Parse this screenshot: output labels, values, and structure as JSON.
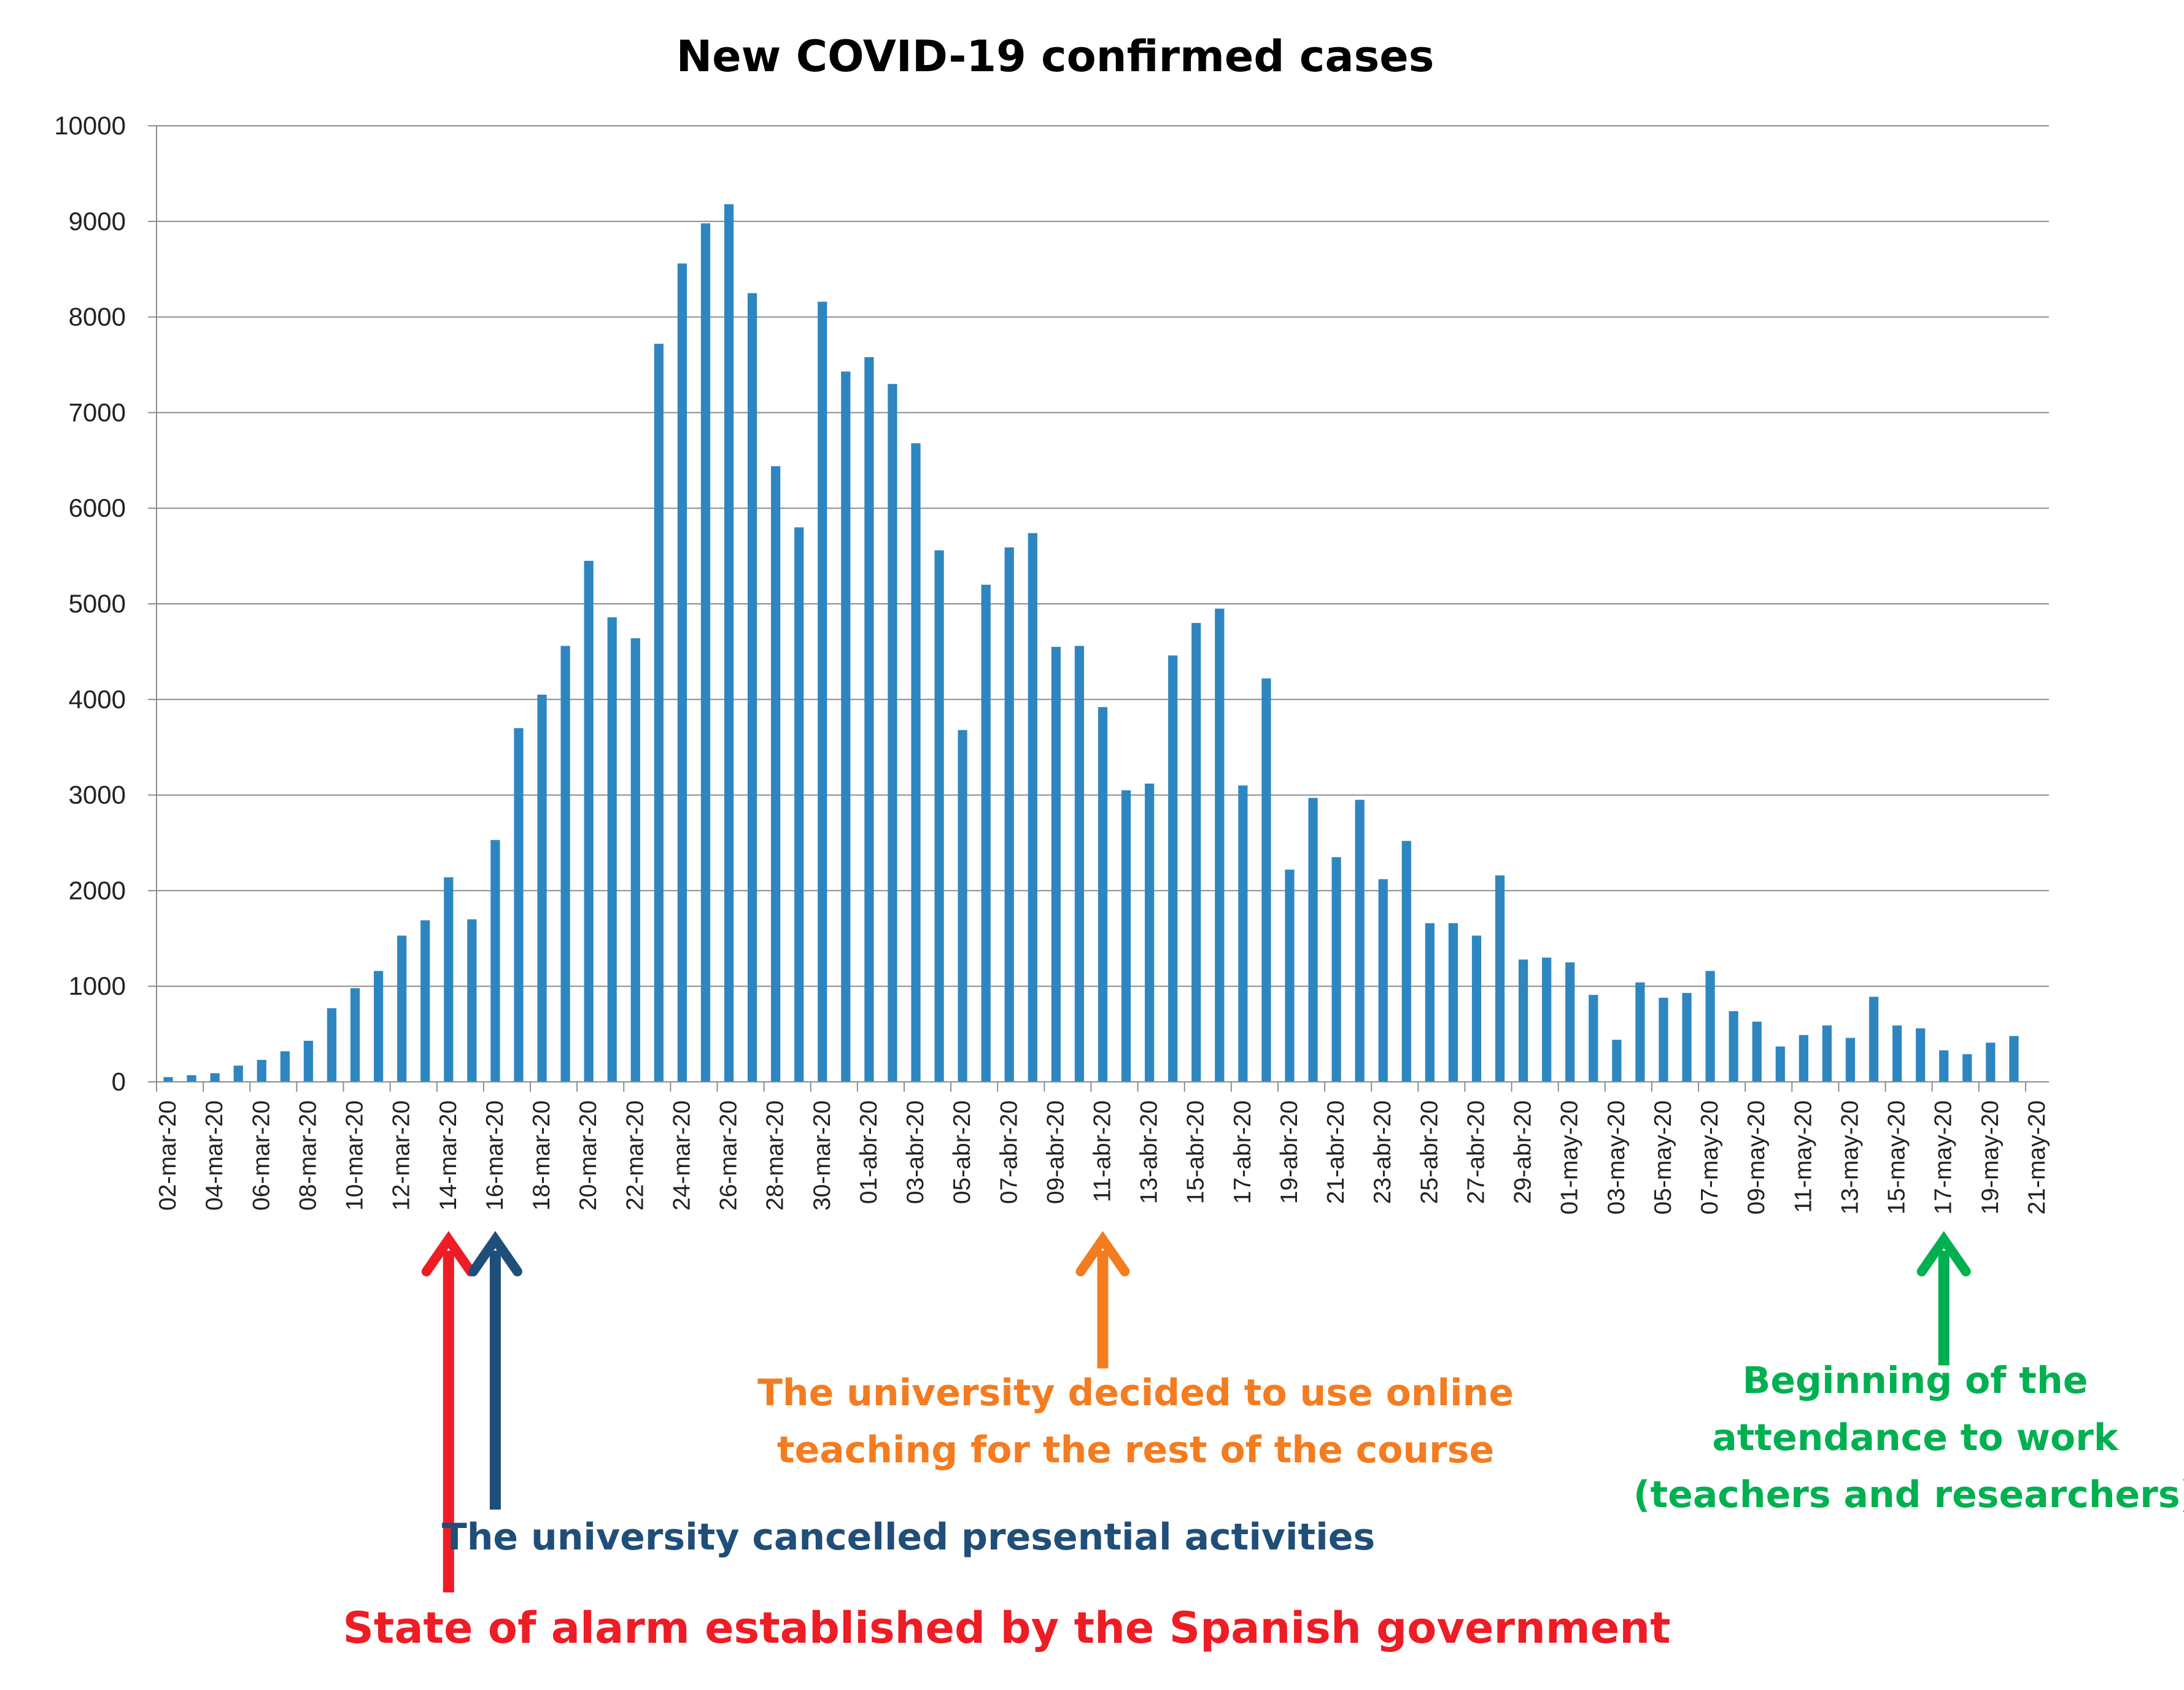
{
  "chart_data": {
    "type": "bar",
    "title": "New COVID-19 confirmed cases",
    "xlabel": "",
    "ylabel": "",
    "ylim": [
      0,
      10000
    ],
    "yticks": [
      "0",
      "1000",
      "2000",
      "3000",
      "4000",
      "5000",
      "6000",
      "7000",
      "8000",
      "9000",
      "10000"
    ],
    "grid": true,
    "bar_color": "#2e86c1",
    "categories": [
      "02-mar-20",
      "03-mar-20",
      "04-mar-20",
      "05-mar-20",
      "06-mar-20",
      "07-mar-20",
      "08-mar-20",
      "09-mar-20",
      "10-mar-20",
      "11-mar-20",
      "12-mar-20",
      "13-mar-20",
      "14-mar-20",
      "15-mar-20",
      "16-mar-20",
      "17-mar-20",
      "18-mar-20",
      "19-mar-20",
      "20-mar-20",
      "21-mar-20",
      "22-mar-20",
      "23-mar-20",
      "24-mar-20",
      "25-mar-20",
      "26-mar-20",
      "27-mar-20",
      "28-mar-20",
      "29-mar-20",
      "30-mar-20",
      "31-mar-20",
      "01-abr-20",
      "02-abr-20",
      "03-abr-20",
      "04-abr-20",
      "05-abr-20",
      "06-abr-20",
      "07-abr-20",
      "08-abr-20",
      "09-abr-20",
      "10-abr-20",
      "11-abr-20",
      "12-abr-20",
      "13-abr-20",
      "14-abr-20",
      "15-abr-20",
      "16-abr-20",
      "17-abr-20",
      "18-abr-20",
      "19-abr-20",
      "20-abr-20",
      "21-abr-20",
      "22-abr-20",
      "23-abr-20",
      "24-abr-20",
      "25-abr-20",
      "26-abr-20",
      "27-abr-20",
      "28-abr-20",
      "29-abr-20",
      "30-abr-20",
      "01-may-20",
      "02-may-20",
      "03-may-20",
      "04-may-20",
      "05-may-20",
      "06-may-20",
      "07-may-20",
      "08-may-20",
      "09-may-20",
      "10-may-20",
      "11-may-20",
      "12-may-20",
      "13-may-20",
      "14-may-20",
      "15-may-20",
      "16-may-20",
      "17-may-20",
      "18-may-20",
      "19-may-20",
      "20-may-20",
      "21-may-20"
    ],
    "xtick_labels": [
      "02-mar-20",
      "04-mar-20",
      "06-mar-20",
      "08-mar-20",
      "10-mar-20",
      "12-mar-20",
      "14-mar-20",
      "16-mar-20",
      "18-mar-20",
      "20-mar-20",
      "22-mar-20",
      "24-mar-20",
      "26-mar-20",
      "28-mar-20",
      "30-mar-20",
      "01-abr-20",
      "03-abr-20",
      "05-abr-20",
      "07-abr-20",
      "09-abr-20",
      "11-abr-20",
      "13-abr-20",
      "15-abr-20",
      "17-abr-20",
      "19-abr-20",
      "21-abr-20",
      "23-abr-20",
      "25-abr-20",
      "27-abr-20",
      "29-abr-20",
      "01-may-20",
      "03-may-20",
      "05-may-20",
      "07-may-20",
      "09-may-20",
      "11-may-20",
      "13-may-20",
      "15-may-20",
      "17-may-20",
      "19-may-20",
      "21-may-20"
    ],
    "values": [
      50,
      70,
      90,
      170,
      230,
      320,
      430,
      770,
      980,
      1160,
      1530,
      1690,
      2140,
      1700,
      2530,
      3700,
      4050,
      4560,
      5450,
      4860,
      4640,
      7720,
      8560,
      8980,
      9180,
      8250,
      6440,
      5800,
      8160,
      7430,
      7580,
      7300,
      6680,
      5560,
      3680,
      5200,
      5590,
      5740,
      4550,
      4560,
      3920,
      3050,
      3120,
      4460,
      4800,
      4950,
      3100,
      4220,
      2220,
      2970,
      2350,
      2950,
      2120,
      2520,
      1660,
      1660,
      1530,
      2160,
      1280,
      1300,
      1250,
      910,
      440,
      1040,
      880,
      930,
      1160,
      740,
      630,
      370,
      490,
      590,
      460,
      890,
      590,
      560,
      330,
      290,
      410,
      480,
      0
    ],
    "annotations": [
      {
        "key": "alarm",
        "text_lines": [
          "State of alarm established by the Spanish government"
        ],
        "color": "#ee1c25",
        "arrow_category": "14-mar-20"
      },
      {
        "key": "cancelled",
        "text_lines": [
          "The university cancelled presential activities"
        ],
        "color": "#1f4e79",
        "arrow_category": "16-mar-20"
      },
      {
        "key": "online",
        "text_lines": [
          "The university decided to use online",
          "teaching for the rest of the course"
        ],
        "color": "#f47c20",
        "arrow_category": "11-abr-20"
      },
      {
        "key": "attendance",
        "text_lines": [
          "Beginning of the",
          "attendance to work",
          "(teachers and researchers)"
        ],
        "color": "#00b050",
        "arrow_category": "17-may-20"
      }
    ]
  }
}
